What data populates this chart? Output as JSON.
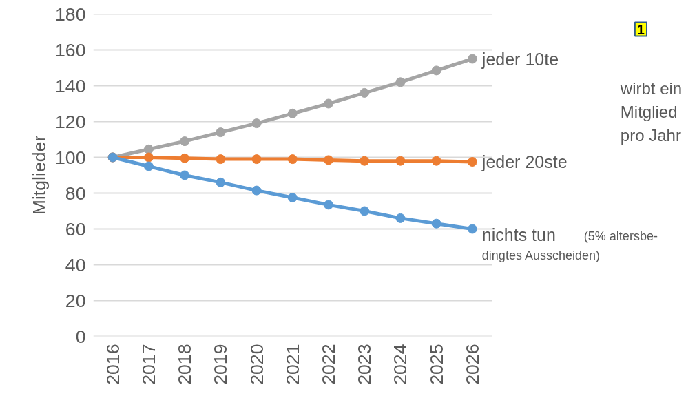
{
  "chart_data": {
    "type": "line",
    "ylabel": "Mitglieder",
    "categories": [
      "2016",
      "2017",
      "2018",
      "2019",
      "2020",
      "2021",
      "2022",
      "2023",
      "2024",
      "2025",
      "2026"
    ],
    "series": [
      {
        "name": "jeder 10te",
        "color": "#a5a5a5",
        "values": [
          100,
          104.5,
          109,
          114,
          119,
          124.5,
          130,
          136,
          142,
          148.5,
          155
        ]
      },
      {
        "name": "jeder 20ste",
        "color": "#ed7d31",
        "values": [
          100,
          100,
          99.5,
          99,
          99,
          99,
          98.5,
          98,
          98,
          98,
          97.5
        ]
      },
      {
        "name": "nichts tun",
        "color": "#5b9bd5",
        "values": [
          100,
          95,
          90,
          86,
          81.5,
          77.5,
          73.5,
          70,
          66,
          63,
          60
        ]
      }
    ],
    "ylim": [
      0,
      180
    ],
    "yticks": [
      0,
      20,
      40,
      60,
      80,
      100,
      120,
      140,
      160,
      180
    ],
    "grid": "y",
    "marker": "circle",
    "line_style": "solid",
    "legend": false,
    "annotations": [
      "(5% altersbe-\ndingtes Ausscheiden)",
      "wirbt ein\nMitglied\npro Jahr",
      "1"
    ]
  }
}
